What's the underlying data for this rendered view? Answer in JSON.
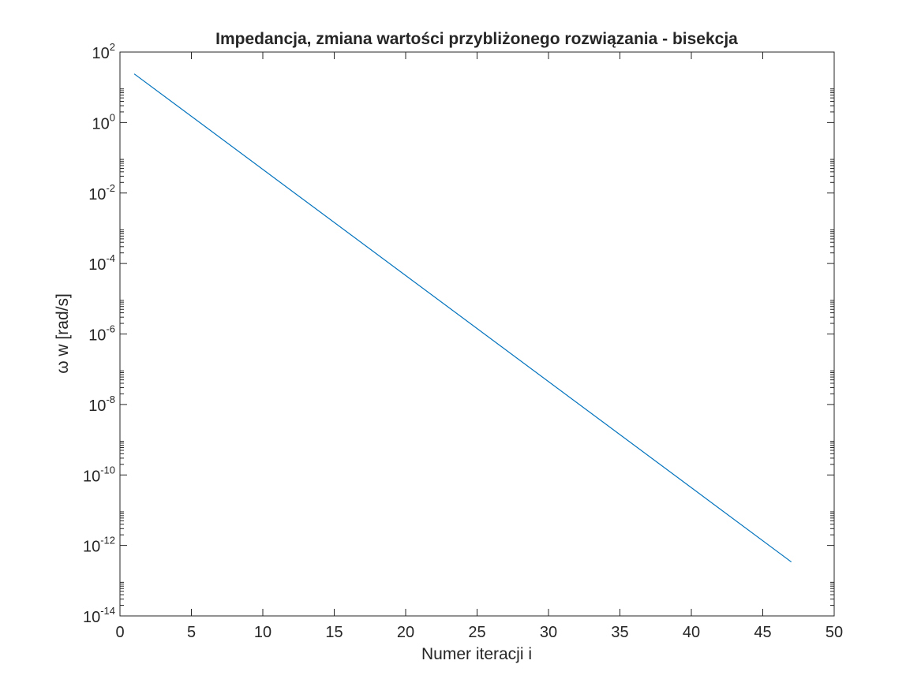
{
  "chart_data": {
    "type": "line",
    "title": "Impedancja, zmiana wartości przybliżonego rozwiązania - bisekcja",
    "xlabel": "Numer iteracji i",
    "ylabel": "ω w [rad/s]",
    "xlim": [
      0,
      50
    ],
    "ylim": [
      1e-14,
      100
    ],
    "yscale": "log",
    "xticks": [
      "0",
      "5",
      "10",
      "15",
      "20",
      "25",
      "30",
      "35",
      "40",
      "45",
      "50"
    ],
    "yticks": [
      {
        "base": "10",
        "exp": "2"
      },
      {
        "base": "10",
        "exp": "0"
      },
      {
        "base": "10",
        "exp": "-2"
      },
      {
        "base": "10",
        "exp": "-4"
      },
      {
        "base": "10",
        "exp": "-6"
      },
      {
        "base": "10",
        "exp": "-8"
      },
      {
        "base": "10",
        "exp": "-10"
      },
      {
        "base": "10",
        "exp": "-12"
      },
      {
        "base": "10",
        "exp": "-14"
      }
    ],
    "grid": false,
    "line_color": "#0072BD",
    "series": [
      {
        "x": [
          1,
          47
        ],
        "y": [
          24,
          3.4e-13
        ]
      }
    ]
  }
}
